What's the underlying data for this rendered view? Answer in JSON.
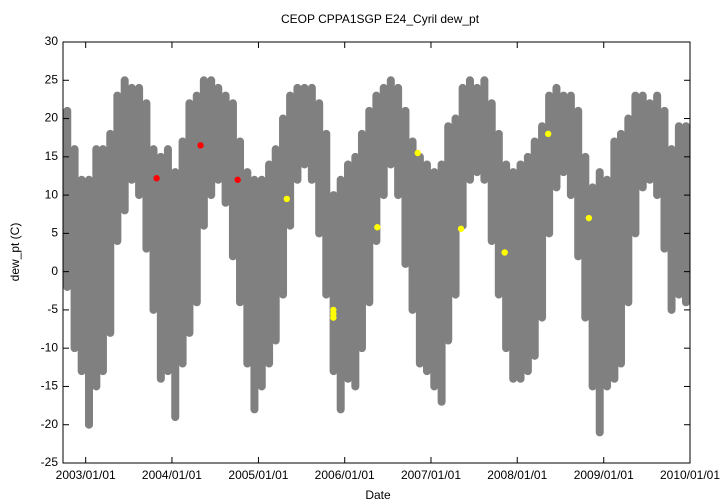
{
  "chart_data": {
    "type": "scatter",
    "title": "CEOP CPPA1SGP E24_Cyril  dew_pt",
    "xlabel": "Date",
    "ylabel": "dew_pt (C)",
    "xlim": [
      "2002/09/27",
      "2010/01/01"
    ],
    "xticks": [
      "2003/01/01",
      "2004/01/01",
      "2005/01/01",
      "2006/01/01",
      "2007/01/01",
      "2008/01/01",
      "2009/01/01",
      "2010/01/01"
    ],
    "ylim": [
      -25,
      30
    ],
    "yticks": [
      -25,
      -20,
      -15,
      -10,
      -5,
      0,
      5,
      10,
      15,
      20,
      25,
      30
    ],
    "series": [
      {
        "color": "#808080",
        "x": [
          "2002/10/15",
          "2002/11/15",
          "2002/12/15",
          "2003/01/15",
          "2003/02/15",
          "2003/03/15",
          "2003/04/15",
          "2003/05/15",
          "2003/06/15",
          "2003/07/15",
          "2003/08/15",
          "2003/09/15",
          "2003/10/15",
          "2003/11/15",
          "2003/12/15",
          "2004/01/15",
          "2004/02/15",
          "2004/03/15",
          "2004/04/15",
          "2004/05/15",
          "2004/06/15",
          "2004/07/15",
          "2004/08/15",
          "2004/09/15",
          "2004/10/15",
          "2004/11/15",
          "2004/12/15",
          "2005/01/15",
          "2005/02/15",
          "2005/03/15",
          "2005/04/15",
          "2005/05/15",
          "2005/06/15",
          "2005/07/15",
          "2005/08/15",
          "2005/09/15",
          "2005/10/15",
          "2005/11/15",
          "2005/12/15",
          "2006/01/15",
          "2006/02/15",
          "2006/03/15",
          "2006/04/15",
          "2006/05/15",
          "2006/06/15",
          "2006/07/15",
          "2006/08/15",
          "2006/09/15",
          "2006/10/15",
          "2006/11/15",
          "2006/12/15",
          "2007/01/15",
          "2007/02/15",
          "2007/03/15",
          "2007/04/15",
          "2007/05/15",
          "2007/06/15",
          "2007/07/15",
          "2007/08/15",
          "2007/09/15",
          "2007/10/15",
          "2007/11/15",
          "2007/12/15",
          "2008/01/15",
          "2008/02/15",
          "2008/03/15",
          "2008/04/15",
          "2008/05/15",
          "2008/06/15",
          "2008/07/15",
          "2008/08/15",
          "2008/09/15",
          "2008/10/15",
          "2008/11/15",
          "2008/12/15",
          "2009/01/15",
          "2009/02/15",
          "2009/03/15",
          "2009/04/15",
          "2009/05/15",
          "2009/06/15",
          "2009/07/15",
          "2009/08/15",
          "2009/09/15",
          "2009/10/15",
          "2009/11/15",
          "2009/12/15"
        ],
        "low": [
          -2,
          -10,
          -13,
          -20,
          -15,
          -13,
          -8,
          4,
          8,
          12,
          10,
          3,
          -5,
          -14,
          -13,
          -19,
          -12,
          -8,
          -4,
          6,
          10,
          12,
          9,
          2,
          -4,
          -12,
          -18,
          -15,
          -12,
          -9,
          -3,
          6,
          12,
          14,
          12,
          5,
          -3,
          -13,
          -18,
          -14,
          -15,
          -10,
          -4,
          4,
          10,
          14,
          10,
          1,
          -5,
          -12,
          -13,
          -15,
          -17,
          -9,
          -3,
          6,
          12,
          13,
          12,
          4,
          -3,
          -10,
          -14,
          -14,
          -13,
          -11,
          -6,
          5,
          11,
          13,
          10,
          2,
          -6,
          -15,
          -21,
          -15,
          -14,
          -12,
          -4,
          5,
          11,
          12,
          10,
          3,
          -5,
          -3,
          -4
        ],
        "high": [
          21,
          16,
          12,
          12,
          16,
          16,
          18,
          23,
          25,
          24,
          24,
          22,
          16,
          15,
          16,
          13,
          17,
          22,
          23,
          25,
          25,
          24,
          23,
          22,
          17,
          13,
          12,
          12,
          14,
          16,
          20,
          23,
          24,
          24,
          24,
          22,
          18,
          10,
          12,
          14,
          15,
          18,
          21,
          23,
          24,
          25,
          24,
          21,
          17,
          15,
          14,
          13,
          14,
          19,
          20,
          24,
          25,
          24,
          25,
          22,
          18,
          14,
          13,
          14,
          15,
          17,
          19,
          23,
          24,
          23,
          23,
          21,
          15,
          11,
          13,
          12,
          17,
          18,
          20,
          23,
          23,
          22,
          23,
          21,
          16,
          19,
          19
        ]
      },
      {
        "color": "#ff0000",
        "x": [
          "2003/10/28",
          "2004/05/01",
          "2004/10/05"
        ],
        "values": [
          12.2,
          16.5,
          12
        ]
      },
      {
        "color": "#ffff00",
        "x": [
          "2005/05/01",
          "2005/11/14",
          "2005/11/14",
          "2005/11/14",
          "2006/05/19",
          "2006/11/06",
          "2007/05/08",
          "2007/11/09",
          "2008/05/11",
          "2008/10/30"
        ],
        "values": [
          9.5,
          -5,
          -5.5,
          -6,
          5.8,
          15.5,
          5.6,
          2.5,
          18,
          7
        ]
      }
    ]
  }
}
